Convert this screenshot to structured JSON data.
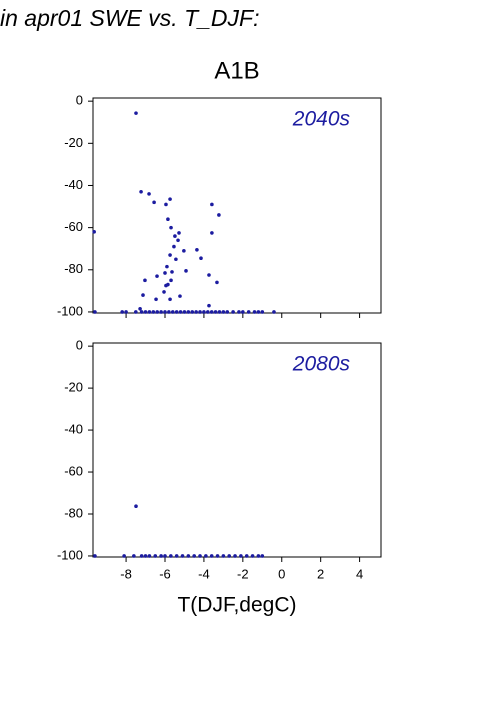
{
  "page": {
    "title": "in apr01 SWE vs. T_DJF:",
    "subtitle": "A1B",
    "x_label": "T(DJF,degC)"
  },
  "chart_data": [
    {
      "type": "scatter",
      "label": "2040s",
      "color": "#1c1ca0",
      "xlim": [
        -9.7,
        5.1
      ],
      "ylim": [
        -100.5,
        1.5
      ],
      "xticks": [
        -8,
        -6,
        -4,
        -2,
        0,
        2,
        4
      ],
      "yticks": [
        0,
        -20,
        -40,
        -60,
        -80,
        -100
      ],
      "x": [
        -7.49,
        -9.64,
        -7.23,
        -6.82,
        -6.56,
        -5.95,
        -5.74,
        -3.59,
        -3.23,
        -3.59,
        -5.85,
        -5.69,
        -5.49,
        -5.28,
        -5.33,
        -5.54,
        -5.03,
        -4.36,
        -5.74,
        -4.15,
        -5.44,
        -5.9,
        -6.0,
        -5.64,
        -4.92,
        -6.41,
        -3.74,
        -7.03,
        -5.69,
        -3.33,
        -5.85,
        -5.95,
        -6.05,
        -7.13,
        -5.23,
        -6.46,
        -5.74,
        -3.74,
        -7.28,
        -9.6,
        -8.2,
        -8.0,
        -7.5,
        -7.2,
        -7.0,
        -6.8,
        -6.6,
        -6.4,
        -6.2,
        -6.0,
        -5.8,
        -5.6,
        -5.4,
        -5.2,
        -5.0,
        -4.8,
        -4.6,
        -4.4,
        -4.2,
        -4.0,
        -3.8,
        -3.6,
        -3.4,
        -3.2,
        -3.0,
        -2.8,
        -2.5,
        -2.2,
        -2.0,
        -1.7,
        -1.4,
        -1.2,
        -1.0,
        -0.4
      ],
      "y": [
        -5.7,
        -62,
        -43,
        -44,
        -48,
        -49,
        -46.5,
        -49,
        -54,
        -62.5,
        -56,
        -60,
        -64,
        -62.5,
        -66,
        -69,
        -71,
        -70.5,
        -73,
        -74.5,
        -75,
        -78.5,
        -81.5,
        -81,
        -80.5,
        -83,
        -82.5,
        -85,
        -85,
        -86,
        -87,
        -87.5,
        -90.5,
        -92,
        -92.5,
        -94,
        -94,
        -97,
        -98.5,
        -100,
        -100,
        -100,
        -100,
        -100,
        -100,
        -100,
        -100,
        -100,
        -100,
        -100,
        -100,
        -100,
        -100,
        -100,
        -100,
        -100,
        -100,
        -100,
        -100,
        -100,
        -100,
        -100,
        -100,
        -100,
        -100,
        -100,
        -100,
        -100,
        -100,
        -100,
        -100,
        -100,
        -100,
        -100
      ]
    },
    {
      "type": "scatter",
      "label": "2080s",
      "color": "#1c1ca0",
      "xlim": [
        -9.7,
        5.1
      ],
      "ylim": [
        -100.5,
        1.5
      ],
      "xticks": [
        -8,
        -6,
        -4,
        -2,
        0,
        2,
        4
      ],
      "yticks": [
        0,
        -20,
        -40,
        -60,
        -80,
        -100
      ],
      "x": [
        -7.49,
        -9.6,
        -8.1,
        -7.6,
        -7.2,
        -7.0,
        -6.8,
        -6.5,
        -6.2,
        -6.0,
        -5.7,
        -5.4,
        -5.1,
        -4.8,
        -4.5,
        -4.2,
        -3.9,
        -3.6,
        -3.3,
        -3.0,
        -2.7,
        -2.4,
        -2.1,
        -1.8,
        -1.5,
        -1.2,
        -1.0
      ],
      "y": [
        -76.3,
        -100,
        -100,
        -100,
        -100,
        -100,
        -100,
        -100,
        -100,
        -100,
        -100,
        -100,
        -100,
        -100,
        -100,
        -100,
        -100,
        -100,
        -100,
        -100,
        -100,
        -100,
        -100,
        -100,
        -100,
        -100,
        -100
      ]
    }
  ]
}
